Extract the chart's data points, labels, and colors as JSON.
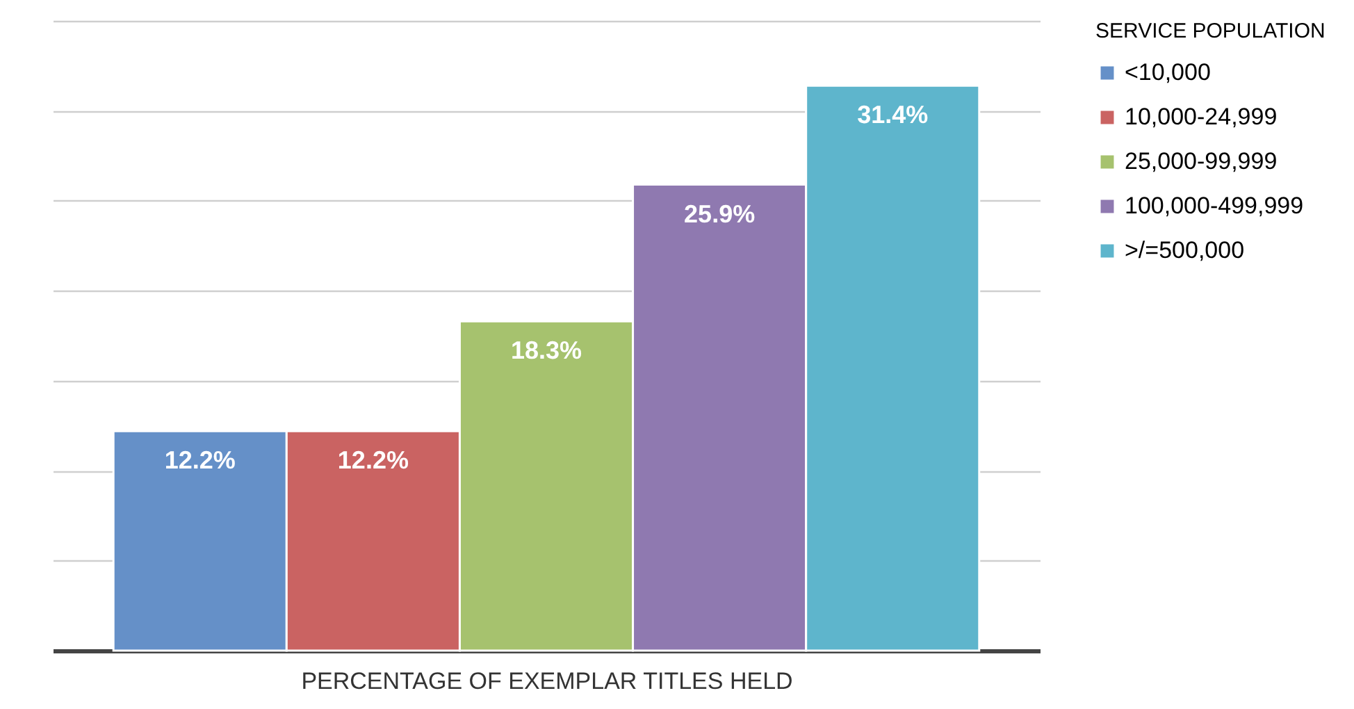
{
  "chart_data": {
    "type": "bar",
    "xlabel": "PERCENTAGE OF EXEMPLAR TITLES HELD",
    "legend_title": "SERVICE POPULATION",
    "categories": [
      null
    ],
    "series": [
      {
        "name": "<10,000",
        "color": "#6590c8",
        "values": [
          12.2
        ],
        "value_labels": [
          "12.2%"
        ]
      },
      {
        "name": "10,000-24,999",
        "color": "#ca6362",
        "values": [
          12.2
        ],
        "value_labels": [
          "12.2%"
        ]
      },
      {
        "name": "25,000-99,999",
        "color": "#a6c26e",
        "values": [
          18.3
        ],
        "value_labels": [
          "18.3%"
        ]
      },
      {
        "name": "100,000-499,999",
        "color": "#8f79b0",
        "values": [
          25.9
        ],
        "value_labels": [
          "25.9%"
        ]
      },
      {
        "name": ">/=500,000",
        "color": "#5eb5cc",
        "values": [
          31.4
        ],
        "value_labels": [
          "31.4%"
        ]
      }
    ],
    "tick_labels": false,
    "grid": "y",
    "legend": "right"
  }
}
